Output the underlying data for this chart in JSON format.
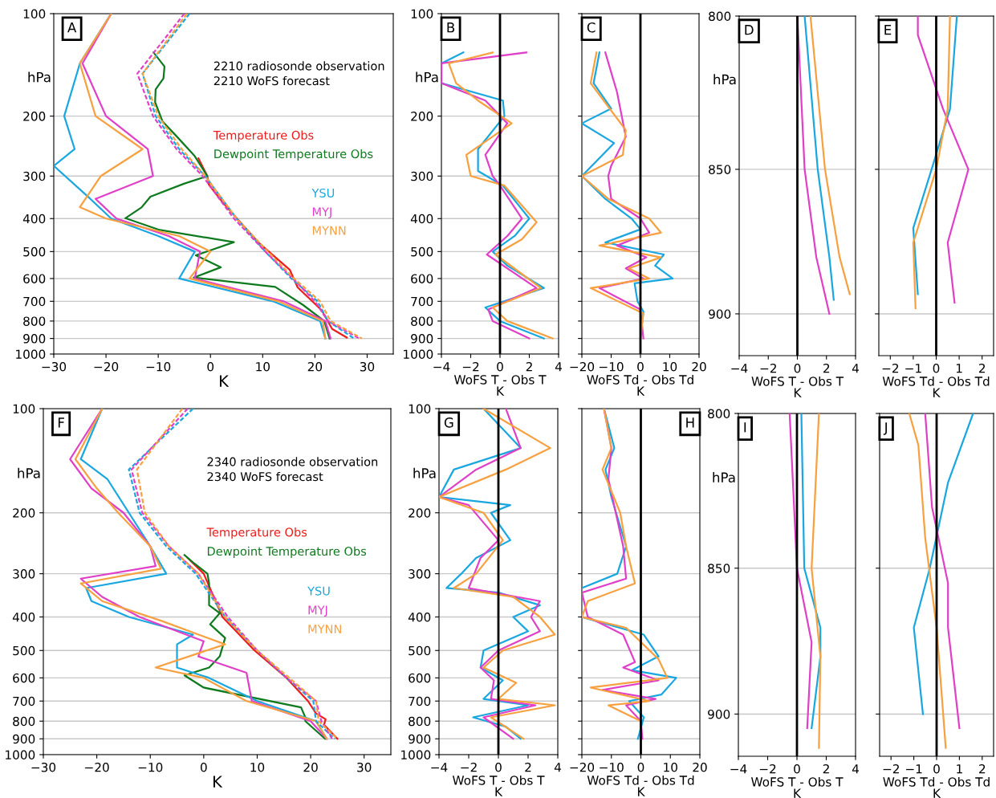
{
  "chart_data": [
    {
      "type": "line",
      "orientation": "horizontal",
      "log": "y",
      "grid": "y",
      "xlabel": "K",
      "ylabel": "hPa",
      "xlim": [
        -30,
        35
      ],
      "xticks": [
        -30,
        -20,
        -10,
        0,
        10,
        20,
        30
      ],
      "ylim": [
        1000,
        100
      ],
      "yticks": [
        100,
        200,
        300,
        400,
        500,
        600,
        700,
        800,
        900,
        1000
      ],
      "annotations": [
        "A",
        "2210 radiosonde observation\n2210 WoFS forecast"
      ],
      "series": [
        {
          "name": "Temperature Obs",
          "color": "#ee1c1c",
          "x": [
            266,
            300,
            318,
            361,
            469,
            566,
            637,
            744,
            844,
            894
          ],
          "values": [
            -2.3,
            -0.6,
            -0.3,
            2.5,
            9.1,
            15.2,
            16.7,
            21.3,
            23.3,
            26.1
          ]
        },
        {
          "name": "Dewpoint Temperature Obs",
          "color": "#0e7a1e",
          "x": [
            130,
            143,
            155,
            167,
            182,
            207,
            230,
            261,
            300,
            316,
            345,
            371,
            399,
            432,
            469,
            513,
            556,
            596,
            635,
            717,
            800,
            900
          ],
          "values": [
            -10.9,
            -8.8,
            -9.0,
            -10.5,
            -10.6,
            -9.2,
            -6.4,
            -3.1,
            -0.6,
            -5.1,
            -11.5,
            -13.2,
            -16.3,
            -9.7,
            4.5,
            -2.8,
            2.0,
            -3.2,
            12.4,
            17.7,
            21.8,
            22.8
          ]
        },
        {
          "name": "YSU",
          "color": "#1aa7e0",
          "x": [
            100,
            140,
            200,
            250,
            280,
            350,
            400,
            450,
            500,
            600,
            700,
            800,
            900
          ],
          "values": [
            -19,
            -25,
            -28,
            -26,
            -30,
            -23,
            -19,
            -10,
            -3,
            -6,
            12,
            21,
            22
          ]
        },
        {
          "name": "MYJ",
          "color": "#e040c8",
          "x": [
            100,
            140,
            200,
            250,
            300,
            350,
            400,
            450,
            500,
            600,
            700,
            800,
            900
          ],
          "values": [
            -19,
            -24.5,
            -20,
            -12,
            -11,
            -22,
            -18,
            -8,
            -2,
            -3,
            14,
            22,
            23
          ]
        },
        {
          "name": "MYNN",
          "color": "#f7a040",
          "x": [
            100,
            140,
            200,
            250,
            300,
            370,
            400,
            450,
            500,
            600,
            700,
            800,
            900
          ],
          "values": [
            -19,
            -25,
            -22,
            -13,
            -21,
            -25,
            -20,
            -6,
            0,
            -4,
            13,
            21.5,
            22
          ]
        },
        {
          "color": "#1aa7e0",
          "line_style": "dashed",
          "x": [
            100,
            150,
            200,
            250,
            300,
            400,
            500,
            600,
            700,
            800,
            900
          ],
          "values": [
            -4,
            -13,
            -10.5,
            -6,
            -1,
            5,
            10.5,
            15.5,
            20.5,
            22.5,
            27.5
          ]
        },
        {
          "color": "#e040c8",
          "line_style": "dashed",
          "x": [
            100,
            150,
            200,
            250,
            300,
            400,
            500,
            600,
            700,
            800,
            900
          ],
          "values": [
            -5,
            -14,
            -11,
            -6.5,
            -1.5,
            4.5,
            10.5,
            15.8,
            20,
            22.5,
            28.5
          ]
        },
        {
          "color": "#f7a040",
          "line_style": "dashed",
          "x": [
            100,
            150,
            200,
            250,
            300,
            400,
            500,
            600,
            700,
            800,
            900
          ],
          "values": [
            -4.5,
            -13,
            -10,
            -5.5,
            -1,
            5,
            11,
            16,
            21,
            23,
            29
          ]
        }
      ]
    },
    {
      "type": "line",
      "orientation": "horizontal",
      "log": "y",
      "grid": "y",
      "xlabel": "WoFS T - Obs T\nK",
      "ylabel": "hPa",
      "xlim": [
        -4,
        4
      ],
      "xticks": [
        -4,
        -2,
        0,
        2,
        4
      ],
      "ylim": [
        1000,
        100
      ],
      "yticks": [
        100,
        200,
        300,
        400,
        500,
        600,
        700,
        800,
        900,
        1000
      ],
      "annotations": [
        "B"
      ],
      "ref_lines": [
        {
          "axis": "x",
          "value": 0,
          "color": "#000000"
        }
      ],
      "series": [
        {
          "color": "#1aa7e0",
          "x": [
            130,
            140,
            160,
            180,
            200,
            250,
            290,
            320,
            400,
            450,
            500,
            550,
            640,
            730,
            800,
            900
          ],
          "values": [
            -2.5,
            -4,
            -4,
            0.2,
            0.3,
            -1.5,
            -1.5,
            0.2,
            2.0,
            1.0,
            -0.5,
            0.5,
            3.0,
            -1.0,
            0,
            3
          ]
        },
        {
          "color": "#e040c8",
          "x": [
            130,
            140,
            160,
            180,
            210,
            260,
            300,
            320,
            400,
            450,
            510,
            640,
            740,
            800,
            900
          ],
          "values": [
            1.8,
            -4,
            -4,
            -1,
            0.5,
            -1,
            -0.5,
            0,
            1.5,
            0.5,
            -0.9,
            2.5,
            -0.8,
            -0.5,
            2
          ]
        },
        {
          "color": "#f7a040",
          "x": [
            130,
            140,
            160,
            180,
            210,
            260,
            300,
            320,
            410,
            460,
            510,
            640,
            730,
            800,
            900
          ],
          "values": [
            -0.5,
            -3.5,
            -3,
            -1.5,
            0.8,
            -2.3,
            -2,
            0.3,
            2.5,
            1.5,
            -0.3,
            2.8,
            -0.5,
            0.5,
            3.6
          ]
        }
      ]
    },
    {
      "type": "line",
      "orientation": "horizontal",
      "log": "y",
      "grid": "y",
      "tick_labels": "x",
      "xlabel": "WoFS Td - Obs Td\nK",
      "xlim": [
        -20,
        20
      ],
      "xticks": [
        -20,
        -10,
        0,
        10,
        20
      ],
      "ylim": [
        1000,
        100
      ],
      "yticks": [
        100,
        200,
        300,
        400,
        500,
        600,
        700,
        800,
        900,
        1000
      ],
      "annotations": [
        "C"
      ],
      "ref_lines": [
        {
          "axis": "x",
          "value": 0,
          "color": "#000000"
        }
      ],
      "series": [
        {
          "color": "#1aa7e0",
          "x": [
            130,
            160,
            190,
            210,
            240,
            300,
            350,
            400,
            430,
            470,
            510,
            550,
            600,
            620,
            700,
            750,
            900
          ],
          "values": [
            -14,
            -16,
            -10,
            -20,
            -9,
            -20,
            -12,
            -3,
            0,
            -12,
            8,
            5,
            11,
            -2,
            -1,
            1,
            0
          ]
        },
        {
          "color": "#e040c8",
          "x": [
            130,
            170,
            230,
            280,
            300,
            350,
            400,
            440,
            480,
            520,
            560,
            600,
            640,
            740,
            900
          ],
          "values": [
            -12,
            -8,
            -5,
            -10,
            -11,
            -10,
            0,
            3,
            -8,
            2,
            -5,
            1,
            -14,
            0,
            1
          ]
        },
        {
          "color": "#f7a040",
          "x": [
            130,
            160,
            220,
            260,
            300,
            350,
            400,
            440,
            480,
            520,
            560,
            600,
            640,
            760,
            900
          ],
          "values": [
            -15,
            -17,
            -5,
            -6,
            -20,
            -11,
            3,
            7,
            -14,
            7,
            -4,
            3,
            -17,
            1,
            0
          ]
        }
      ]
    },
    {
      "type": "line",
      "orientation": "horizontal",
      "log": "y",
      "grid": "y",
      "xlabel": "WoFS T - Obs T\nK",
      "ylabel": "hPa",
      "xlim": [
        -4,
        4
      ],
      "xticks": [
        -4,
        -2,
        0,
        2,
        4
      ],
      "ylim": [
        915,
        800
      ],
      "yticks": [
        800,
        850,
        900
      ],
      "annotations": [
        "D"
      ],
      "ref_lines": [
        {
          "axis": "x",
          "value": 0,
          "color": "#000000"
        }
      ],
      "series": [
        {
          "color": "#1aa7e0",
          "x": [
            800,
            850,
            880,
            895
          ],
          "values": [
            0.5,
            1.4,
            2.2,
            2.5
          ]
        },
        {
          "color": "#e040c8",
          "x": [
            800,
            850,
            880,
            900
          ],
          "values": [
            0,
            0.5,
            1.3,
            2.2
          ]
        },
        {
          "color": "#f7a040",
          "x": [
            800,
            850,
            880,
            893
          ],
          "values": [
            0.9,
            1.9,
            2.9,
            3.6
          ]
        }
      ]
    },
    {
      "type": "line",
      "orientation": "horizontal",
      "log": "y",
      "grid": "y",
      "tick_labels": "x",
      "xlabel": "WoFS Td - Obs Td\nK",
      "xlim": [
        -2.5,
        2.5
      ],
      "xticks": [
        -2,
        -1,
        0,
        1,
        2
      ],
      "ylim": [
        915,
        800
      ],
      "yticks": [
        800,
        850,
        900
      ],
      "annotations": [
        "E"
      ],
      "ref_lines": [
        {
          "axis": "x",
          "value": 0,
          "color": "#000000"
        }
      ],
      "series": [
        {
          "color": "#1aa7e0",
          "x": [
            800,
            830,
            850,
            870,
            893
          ],
          "values": [
            0.9,
            0.6,
            -0.2,
            -1.0,
            -0.8
          ]
        },
        {
          "color": "#e040c8",
          "x": [
            800,
            806,
            830,
            850,
            875,
            896
          ],
          "values": [
            -0.8,
            -0.8,
            0.3,
            1.4,
            0.5,
            0.8
          ]
        },
        {
          "color": "#f7a040",
          "x": [
            800,
            830,
            850,
            875,
            898
          ],
          "values": [
            0.6,
            0.5,
            0,
            -1.0,
            -0.9
          ]
        }
      ]
    },
    {
      "type": "line",
      "orientation": "horizontal",
      "log": "y",
      "grid": "y",
      "xlabel": "K",
      "ylabel": "hPa",
      "xlim": [
        -30,
        35
      ],
      "xticks": [
        -30,
        -20,
        -10,
        0,
        10,
        20,
        30
      ],
      "ylim": [
        1000,
        100
      ],
      "yticks": [
        100,
        200,
        300,
        400,
        500,
        600,
        700,
        800,
        900,
        1000
      ],
      "annotations": [
        "F",
        "2340 radiosonde observation\n2340 WoFS forecast"
      ],
      "series": [
        {
          "name": "Temperature Obs",
          "color": "#ee1c1c",
          "x": [
            270,
            300,
            400,
            500,
            600,
            700,
            760,
            790,
            820,
            900
          ],
          "values": [
            -3,
            0,
            3.5,
            9.5,
            15.5,
            19.5,
            21,
            22.8,
            22.5,
            25
          ]
        },
        {
          "name": "Dewpoint Temperature Obs",
          "color": "#0e7a1e",
          "x": [
            265,
            280,
            300,
            320,
            370,
            390,
            420,
            460,
            520,
            560,
            590,
            640,
            730,
            780,
            800,
            900
          ],
          "values": [
            -3.6,
            -1.8,
            0.7,
            1.0,
            1,
            3,
            1.2,
            4,
            3,
            1.0,
            -3.6,
            0,
            18.2,
            19,
            19,
            22.7
          ]
        },
        {
          "name": "YSU",
          "color": "#1aa7e0",
          "x": [
            100,
            140,
            160,
            200,
            250,
            300,
            330,
            360,
            400,
            450,
            480,
            560,
            600,
            700,
            800,
            900
          ],
          "values": [
            -19,
            -23,
            -18,
            -14,
            -10,
            -7,
            -22,
            -21,
            -14,
            -2,
            -5,
            -5,
            1,
            10,
            21,
            23
          ]
        },
        {
          "name": "MYJ",
          "color": "#e040c8",
          "x": [
            100,
            140,
            170,
            200,
            250,
            285,
            310,
            350,
            400,
            470,
            520,
            580,
            700,
            800,
            900
          ],
          "values": [
            -19,
            -25,
            -21,
            -15,
            -10,
            -9,
            -23,
            -19,
            -12,
            0,
            -1,
            8,
            9,
            20,
            23
          ]
        },
        {
          "name": "MYNN",
          "color": "#f7a040",
          "x": [
            100,
            140,
            170,
            200,
            250,
            290,
            320,
            360,
            410,
            480,
            560,
            600,
            700,
            800,
            900
          ],
          "values": [
            -19,
            -24,
            -20,
            -16,
            -10,
            -8,
            -23,
            -19,
            -8,
            4,
            -9,
            0,
            8,
            21,
            23
          ]
        },
        {
          "color": "#1aa7e0",
          "line_style": "dashed",
          "x": [
            100,
            150,
            200,
            250,
            300,
            400,
            500,
            600,
            700,
            800,
            900
          ],
          "values": [
            -2,
            -14,
            -12,
            -7,
            -1.5,
            4,
            10,
            15.5,
            20.5,
            21,
            24.5
          ]
        },
        {
          "color": "#e040c8",
          "line_style": "dashed",
          "x": [
            100,
            150,
            200,
            250,
            300,
            400,
            500,
            600,
            700,
            800,
            900
          ],
          "values": [
            -3,
            -13.5,
            -11.5,
            -6.5,
            -1,
            4.5,
            10,
            15.5,
            21,
            22,
            24
          ]
        },
        {
          "color": "#f7a040",
          "line_style": "dashed",
          "x": [
            100,
            150,
            200,
            250,
            300,
            400,
            500,
            600,
            700,
            800,
            900
          ],
          "values": [
            -4,
            -12.5,
            -11,
            -6.5,
            -1,
            4,
            10,
            16,
            21,
            21.5,
            25
          ]
        }
      ]
    },
    {
      "type": "line",
      "orientation": "horizontal",
      "log": "y",
      "grid": "y",
      "xlabel": "WoFS T - Obs T\nK",
      "ylabel": "hPa",
      "xlim": [
        -4,
        4
      ],
      "xticks": [
        -4,
        -2,
        0,
        2,
        4
      ],
      "ylim": [
        1000,
        100
      ],
      "yticks": [
        100,
        200,
        300,
        400,
        500,
        600,
        700,
        800,
        900,
        1000
      ],
      "annotations": [
        "G"
      ],
      "ref_lines": [
        {
          "axis": "x",
          "value": 0,
          "color": "#000000"
        }
      ],
      "series": [
        {
          "color": "#1aa7e0",
          "x": [
            100,
            130,
            150,
            180,
            190,
            200,
            240,
            270,
            300,
            330,
            340,
            370,
            400,
            440,
            500,
            560,
            610,
            690,
            720,
            780,
            830,
            900
          ],
          "values": [
            -1,
            1.5,
            -3,
            -4,
            0.8,
            -0.5,
            0.8,
            -1.5,
            -2.5,
            -3.5,
            0,
            2.8,
            1,
            2,
            -1,
            -1.2,
            0.3,
            -1,
            2,
            -1.7,
            0.5,
            1.5
          ]
        },
        {
          "color": "#e040c8",
          "x": [
            100,
            130,
            150,
            180,
            190,
            240,
            270,
            330,
            360,
            400,
            440,
            500,
            560,
            610,
            690,
            720,
            780,
            900
          ],
          "values": [
            0.5,
            1.5,
            -1.5,
            -4,
            -2,
            0,
            -1.2,
            -2,
            2.8,
            2.2,
            2.8,
            0,
            -1.2,
            -0.3,
            -0.5,
            2.5,
            -1,
            1
          ]
        },
        {
          "color": "#f7a040",
          "x": [
            100,
            130,
            150,
            180,
            200,
            240,
            300,
            330,
            350,
            400,
            450,
            500,
            560,
            620,
            690,
            720,
            780,
            900
          ],
          "values": [
            -1,
            3.5,
            0.5,
            -4,
            -1,
            0.3,
            -1.5,
            -3,
            1,
            2.8,
            3.8,
            0.3,
            -1,
            1.2,
            0,
            3.8,
            -0.5,
            1.7
          ]
        }
      ]
    },
    {
      "type": "line",
      "orientation": "horizontal",
      "log": "y",
      "grid": "y",
      "tick_labels": "x",
      "xlabel": "WoFS Td - Obs Td\nK",
      "xlim": [
        -20,
        20
      ],
      "xticks": [
        -20,
        -10,
        0,
        10,
        20
      ],
      "ylim": [
        1000,
        100
      ],
      "yticks": [
        100,
        200,
        300,
        400,
        500,
        600,
        700,
        800,
        900,
        1000
      ],
      "annotations": [
        "H"
      ],
      "ref_lines": [
        {
          "axis": "x",
          "value": 0,
          "color": "#000000"
        }
      ],
      "series": [
        {
          "color": "#1aa7e0",
          "x": [
            100,
            130,
            150,
            180,
            250,
            300,
            330,
            400,
            450,
            520,
            570,
            600,
            670,
            700,
            780,
            900
          ],
          "values": [
            -12.5,
            -9,
            -12,
            -10,
            -5,
            -8,
            -20,
            -20,
            1,
            6,
            -3,
            12,
            7,
            -4,
            1,
            -1
          ]
        },
        {
          "color": "#e040c8",
          "x": [
            100,
            130,
            160,
            250,
            310,
            340,
            400,
            450,
            540,
            560,
            610,
            650,
            690,
            720,
            800,
            900
          ],
          "values": [
            -12.5,
            -10,
            -11,
            -6,
            -5,
            -20,
            -18,
            -6,
            -2,
            -6,
            6,
            -13,
            5,
            -5,
            0,
            0.5
          ]
        },
        {
          "color": "#f7a040",
          "x": [
            100,
            130,
            150,
            200,
            250,
            320,
            360,
            400,
            430,
            530,
            600,
            640,
            700,
            720,
            800,
            900
          ],
          "values": [
            -12.5,
            -10,
            -13,
            -7,
            -5,
            -2,
            -18,
            -20,
            -5,
            6,
            9,
            -17,
            3,
            -11,
            0,
            0
          ]
        }
      ]
    },
    {
      "type": "line",
      "orientation": "horizontal",
      "log": "y",
      "grid": "y",
      "xlabel": "WoFS T - Obs T\nK",
      "ylabel": "hPa",
      "xlim": [
        -4,
        4
      ],
      "xticks": [
        -4,
        -2,
        0,
        2,
        4
      ],
      "ylim": [
        915,
        800
      ],
      "yticks": [
        800,
        850,
        900
      ],
      "annotations": [
        "I"
      ],
      "ref_lines": [
        {
          "axis": "x",
          "value": 0,
          "color": "#000000"
        }
      ],
      "series": [
        {
          "color": "#1aa7e0",
          "x": [
            800,
            850,
            870,
            880,
            905
          ],
          "values": [
            0.3,
            0.5,
            1.6,
            1.6,
            1.0
          ]
        },
        {
          "color": "#e040c8",
          "x": [
            800,
            850,
            875,
            905
          ],
          "values": [
            -0.5,
            0,
            1.0,
            0.7
          ]
        },
        {
          "color": "#f7a040",
          "x": [
            800,
            850,
            880,
            912
          ],
          "values": [
            1.5,
            1.0,
            1.6,
            1.5
          ]
        }
      ]
    },
    {
      "type": "line",
      "orientation": "horizontal",
      "log": "y",
      "grid": "y",
      "tick_labels": "x",
      "xlabel": "WoFS Td - Obs Td\nK",
      "xlim": [
        -2.5,
        2.5
      ],
      "xticks": [
        -2,
        -1,
        0,
        1,
        2
      ],
      "ylim": [
        915,
        800
      ],
      "yticks": [
        800,
        850,
        900
      ],
      "annotations": [
        "J"
      ],
      "ref_lines": [
        {
          "axis": "x",
          "value": 0,
          "color": "#000000"
        }
      ],
      "series": [
        {
          "color": "#1aa7e0",
          "x": [
            800,
            822,
            850,
            870,
            900
          ],
          "values": [
            1.6,
            0.5,
            -0.3,
            -1,
            -0.6
          ]
        },
        {
          "color": "#e040c8",
          "x": [
            800,
            830,
            855,
            870,
            905
          ],
          "values": [
            -0.5,
            -0.2,
            0.5,
            0.5,
            1.0
          ]
        },
        {
          "color": "#f7a040",
          "x": [
            800,
            810,
            840,
            870,
            912
          ],
          "values": [
            -1.2,
            -0.8,
            -0.5,
            0,
            0.4
          ]
        }
      ]
    }
  ]
}
